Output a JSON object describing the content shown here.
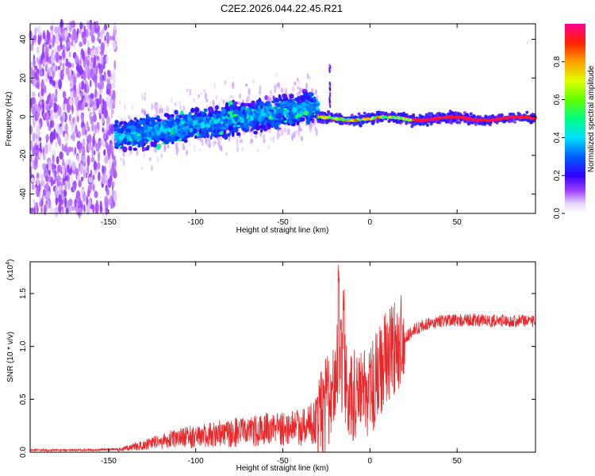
{
  "title": "C2E2.2026.044.22.45.R21",
  "chart_data": [
    {
      "type": "heatmap",
      "name": "spectrogram",
      "xlabel": "Height of straight line (km)",
      "ylabel": "Frequency (Hz)",
      "xlim": [
        -195,
        95
      ],
      "ylim": [
        -50,
        48
      ],
      "xticks": [
        -150,
        -100,
        -50,
        0,
        50
      ],
      "yticks": [
        -40,
        -20,
        0,
        20,
        40
      ],
      "colorbar": {
        "label": "Normalized spectral amplitude",
        "range": [
          0,
          1
        ],
        "ticks": [
          0.0,
          0.2,
          0.4,
          0.6,
          0.8
        ],
        "tick_labels": [
          "0.0",
          "0.2",
          "0.4",
          "0.6",
          "0.8"
        ],
        "colors": [
          "#ffffff",
          "#e8d8ff",
          "#8800ff",
          "#0000ff",
          "#00c0ff",
          "#00ff90",
          "#40ff00",
          "#ffff00",
          "#ff8000",
          "#ff0000",
          "#ff0080"
        ]
      },
      "regions": [
        {
          "x_range": [
            -195,
            -146
          ],
          "description": "scattered noise",
          "freq_spread": 48,
          "amplitude": 0.12
        },
        {
          "x_range": [
            -146,
            -30
          ],
          "description": "signal band rising",
          "center_freq_start": -10,
          "center_freq_end": 5,
          "bandwidth": 10,
          "amplitude": 0.35
        },
        {
          "x_range": [
            -30,
            95
          ],
          "description": "narrow strong line",
          "center_freq": -1,
          "bandwidth": 3,
          "amplitude": 0.9
        }
      ]
    },
    {
      "type": "line",
      "name": "snr",
      "xlabel": "Height of straight line (km)",
      "ylabel": "SNR (10 * v/v)",
      "yscale_label": "(x10",
      "yscale_exp": "4",
      "yscale_close": ")",
      "xlim": [
        -195,
        95
      ],
      "ylim": [
        0,
        1.8
      ],
      "xticks": [
        -150,
        -100,
        -50,
        0,
        50
      ],
      "yticks": [
        0.0,
        0.5,
        1.0,
        1.5
      ],
      "ytick_labels": [
        "0.0",
        "0.5",
        "1.0",
        "1.5"
      ],
      "color": "#e8282b",
      "envelope": {
        "x": [
          -195,
          -160,
          -145,
          -130,
          -120,
          -100,
          -80,
          -60,
          -40,
          -30,
          -25,
          -20,
          -17,
          -15,
          -10,
          -5,
          0,
          5,
          10,
          15,
          20,
          25,
          30,
          40,
          60,
          80,
          95
        ],
        "mean": [
          0.01,
          0.01,
          0.02,
          0.06,
          0.1,
          0.14,
          0.17,
          0.2,
          0.22,
          0.28,
          0.45,
          0.7,
          0.9,
          0.7,
          0.55,
          0.5,
          0.55,
          0.75,
          0.9,
          1.0,
          1.08,
          1.15,
          1.2,
          1.24,
          1.25,
          1.24,
          1.24
        ],
        "spike_x": [
          -18,
          -15
        ],
        "spike_y": [
          1.78,
          1.55
        ]
      }
    }
  ]
}
